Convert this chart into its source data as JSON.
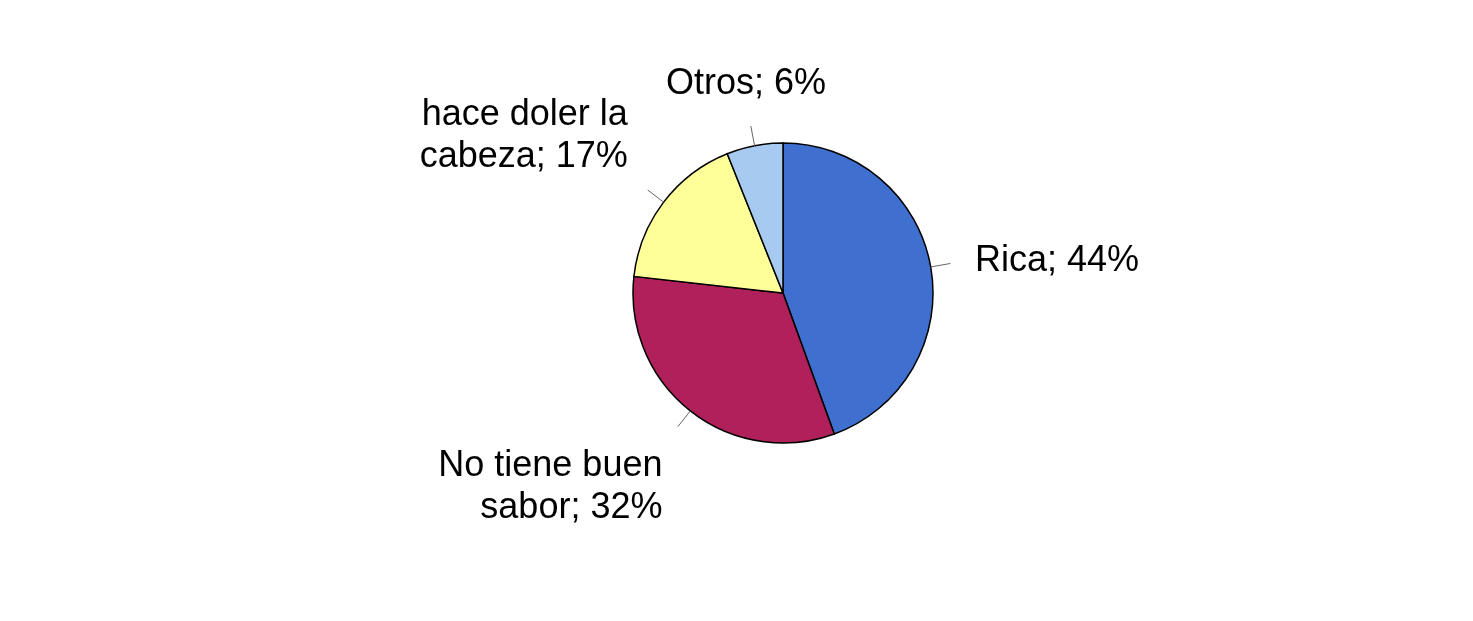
{
  "chart_data": {
    "type": "pie",
    "categories": [
      "Rica",
      "No tiene buen sabor",
      "hace doler la cabeza",
      "Otros"
    ],
    "values": [
      44,
      32,
      17,
      6
    ],
    "colors": [
      "#3f6fcf",
      "#b0205a",
      "#ffff99",
      "#a6caf0"
    ],
    "value_labels": [
      "44%",
      "32%",
      "17%",
      "6%"
    ]
  }
}
